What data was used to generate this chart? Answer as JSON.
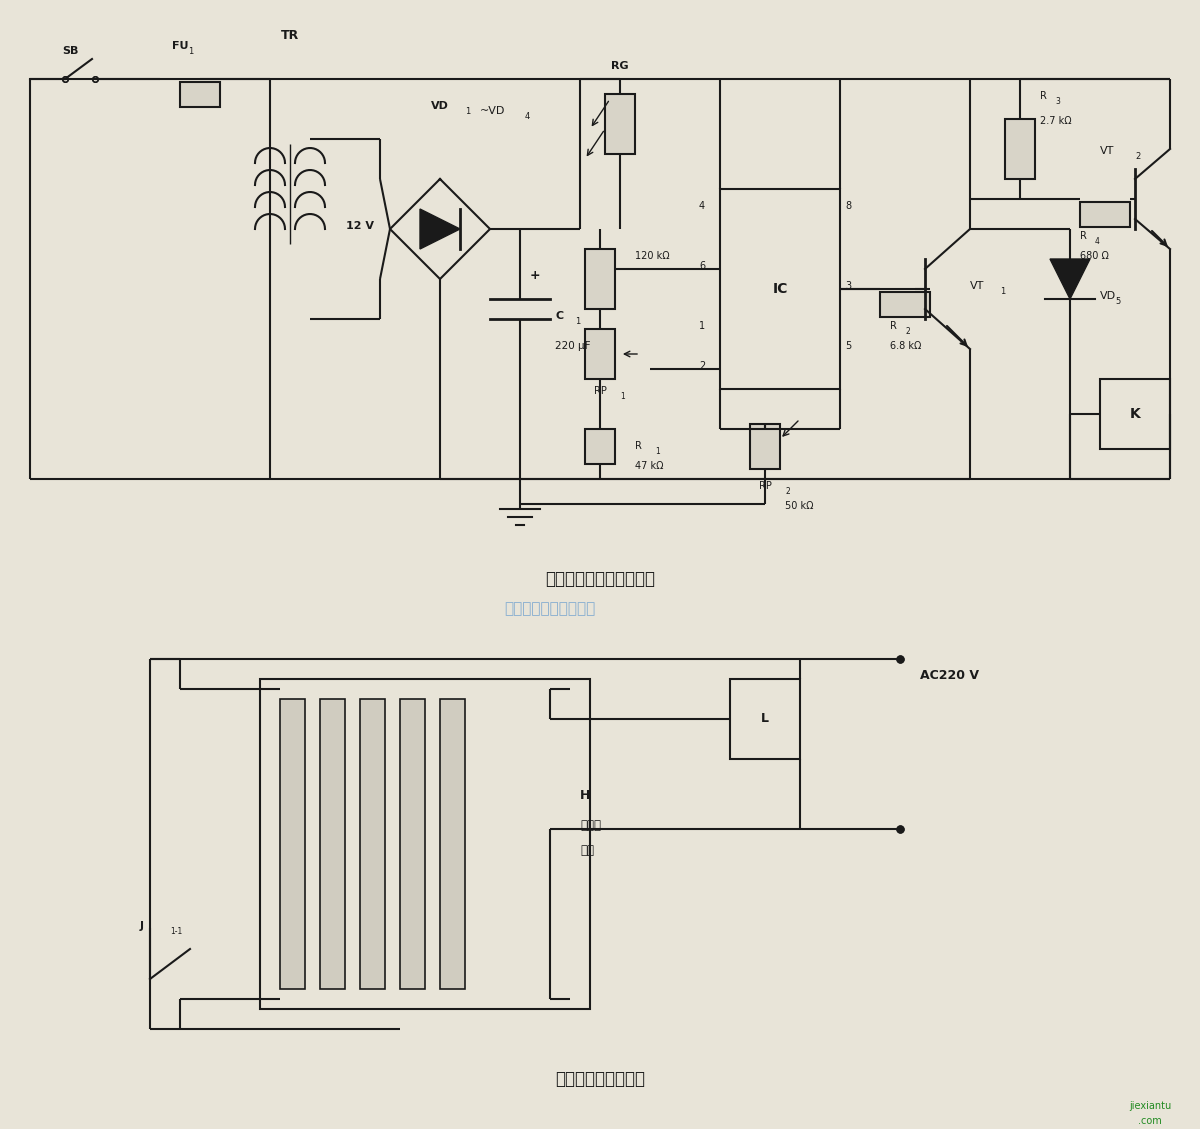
{
  "title1": "教室照明节电器电路原理",
  "title2": "教室照明节电器接线",
  "watermark": "杭州将睿科技有限公司",
  "bg_color": "#e8e4d8",
  "line_color": "#1a1a1a",
  "component_color": "#1a1a1a",
  "text_color": "#1a1a1a",
  "website": "jiexiantu.com"
}
